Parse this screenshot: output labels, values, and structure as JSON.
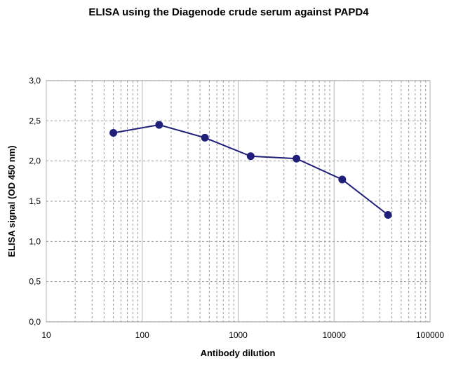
{
  "chart_data": {
    "type": "line",
    "title": "ELISA using the Diagenode crude serum against PAPD4",
    "xlabel": "Antibody dilution",
    "ylabel": "ELISA signal (OD 450 nm)",
    "x_scale": "log",
    "xlim": [
      10,
      100000
    ],
    "ylim": [
      0,
      3
    ],
    "x_ticks": [
      10,
      100,
      1000,
      10000,
      100000
    ],
    "x_tick_labels": [
      "10",
      "100",
      "1000",
      "10000",
      "100000"
    ],
    "y_ticks": [
      0,
      0.5,
      1,
      1.5,
      2,
      2.5,
      3
    ],
    "y_tick_labels": [
      "0,0",
      "0,5",
      "1,0",
      "1,5",
      "2,0",
      "2,5",
      "3,0"
    ],
    "grid": true,
    "legend": "none",
    "series": [
      {
        "color": "#1f1f7a",
        "x": [
          50,
          150,
          450,
          1350,
          4050,
          12150,
          36450
        ],
        "y": [
          2.35,
          2.45,
          2.29,
          2.06,
          2.03,
          1.77,
          1.33
        ]
      }
    ]
  }
}
